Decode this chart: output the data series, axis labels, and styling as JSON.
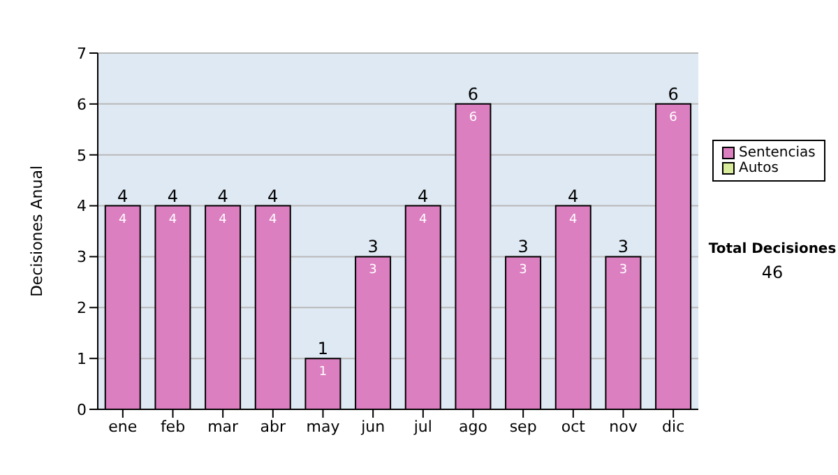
{
  "chart_data": {
    "type": "bar",
    "ylabel": "Decisiones Anual",
    "categories": [
      "ene",
      "feb",
      "mar",
      "abr",
      "may",
      "jun",
      "jul",
      "ago",
      "sep",
      "oct",
      "nov",
      "dic"
    ],
    "stacked": true,
    "series": [
      {
        "name": "Sentencias",
        "color": "#dc7fc0",
        "values": [
          4,
          4,
          4,
          4,
          1,
          3,
          4,
          6,
          3,
          4,
          3,
          6
        ],
        "value_labels": [
          "4",
          "4",
          "4",
          "4",
          "1",
          "3",
          "4",
          "6",
          "3",
          "4",
          "3",
          "6"
        ]
      },
      {
        "name": "Autos",
        "color": "#d8ec9c",
        "values": [
          0,
          0,
          0,
          0,
          0,
          0,
          0,
          0,
          0,
          0,
          0,
          0
        ]
      }
    ],
    "totals": [
      "4",
      "4",
      "4",
      "4",
      "1",
      "3",
      "4",
      "6",
      "3",
      "4",
      "3",
      "6"
    ],
    "ylim": [
      0,
      7
    ],
    "yticks": [
      0,
      1,
      2,
      3,
      4,
      5,
      6,
      7
    ],
    "grid": "y",
    "legend": "right",
    "annotations": [
      "Total Decisiones",
      "46"
    ]
  }
}
